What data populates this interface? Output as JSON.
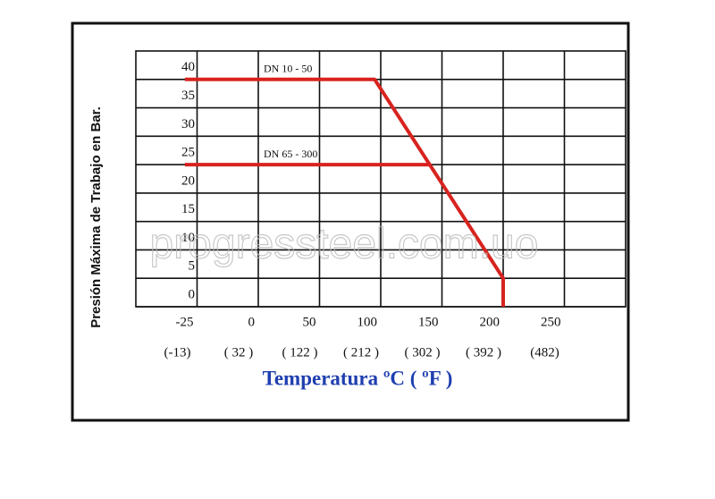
{
  "chart_data": {
    "type": "line",
    "ylabel": "Presión Máxima de Trabajo en Bar.",
    "xlabel": "Temperatura ºC  ( ºF )",
    "xlim": [
      -50,
      300
    ],
    "xticks": [
      -25,
      0,
      50,
      100,
      150,
      200,
      250
    ],
    "fahrenheit_labels": [
      "(-13)",
      "( 32 )",
      "( 122 )",
      "( 212 )",
      "( 302 )",
      "( 392 )",
      "(482)"
    ],
    "ylim": [
      0,
      45
    ],
    "yticks": [
      0,
      5,
      10,
      15,
      20,
      25,
      30,
      35,
      40
    ],
    "grid": true,
    "series": [
      {
        "name": "DN 10 - 50",
        "color": "#d8231f",
        "x": [
          -30,
          95,
          200,
          200
        ],
        "values": [
          40,
          40,
          5,
          0
        ]
      },
      {
        "name": "DN 65 - 300",
        "color": "#d8231f",
        "x": [
          -30,
          140
        ],
        "values": [
          25,
          25
        ]
      }
    ],
    "watermark": "progressteel.com.uo"
  }
}
